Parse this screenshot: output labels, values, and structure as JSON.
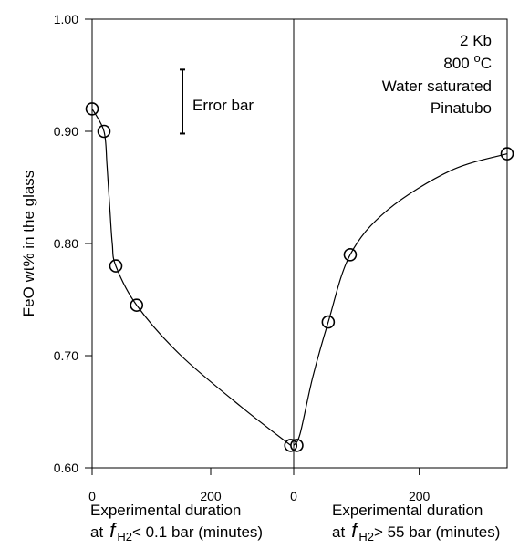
{
  "chart_data": {
    "type": "scatter",
    "ylabel": "FeO wt% in the glass",
    "ylim": [
      0.6,
      1.0
    ],
    "yticks": [
      "1.00",
      "0.90",
      "0.80",
      "0.70",
      "0.60"
    ],
    "yticks_values": [
      1.0,
      0.9,
      0.8,
      0.7,
      0.6
    ],
    "grid": false,
    "panels": [
      {
        "name": "left",
        "xlim": [
          0,
          340
        ],
        "xticks": [
          "0",
          "200"
        ],
        "xticks_values": [
          0,
          200
        ],
        "xlabel_line1": "Experimental duration",
        "xlabel_at": "at",
        "xlabel_f": "f",
        "xlabel_sub": "H2",
        "xlabel_rest": "< 0.1 bar (minutes)",
        "points": [
          {
            "x": 0,
            "y": 0.92
          },
          {
            "x": 20,
            "y": 0.9
          },
          {
            "x": 40,
            "y": 0.78
          },
          {
            "x": 75,
            "y": 0.745
          },
          {
            "x": 335,
            "y": 0.62
          }
        ],
        "curve": [
          {
            "x": 0,
            "y": 0.92
          },
          {
            "x": 20,
            "y": 0.9
          },
          {
            "x": 25,
            "y": 0.87
          },
          {
            "x": 30,
            "y": 0.83
          },
          {
            "x": 34,
            "y": 0.8
          },
          {
            "x": 40,
            "y": 0.78
          },
          {
            "x": 75,
            "y": 0.745
          },
          {
            "x": 150,
            "y": 0.7
          },
          {
            "x": 250,
            "y": 0.655
          },
          {
            "x": 335,
            "y": 0.62
          }
        ]
      },
      {
        "name": "right",
        "xlim": [
          0,
          340
        ],
        "xticks": [
          "0",
          "200"
        ],
        "xticks_values": [
          0,
          200
        ],
        "xlabel_line1": "Experimental duration",
        "xlabel_at": "at",
        "xlabel_f": "f",
        "xlabel_sub": "H2",
        "xlabel_rest": "> 55 bar (minutes)",
        "points": [
          {
            "x": 5,
            "y": 0.62
          },
          {
            "x": 55,
            "y": 0.73
          },
          {
            "x": 90,
            "y": 0.79
          },
          {
            "x": 340,
            "y": 0.88
          }
        ],
        "curve": [
          {
            "x": 0,
            "y": 0.62
          },
          {
            "x": 10,
            "y": 0.63
          },
          {
            "x": 30,
            "y": 0.68
          },
          {
            "x": 55,
            "y": 0.73
          },
          {
            "x": 90,
            "y": 0.79
          },
          {
            "x": 150,
            "y": 0.83
          },
          {
            "x": 250,
            "y": 0.865
          },
          {
            "x": 340,
            "y": 0.88
          }
        ]
      }
    ],
    "error_bar": {
      "label": "Error bar",
      "y_low": 0.898,
      "y_high": 0.955
    },
    "annotations": [
      "2 Kb",
      "800 ",
      "o",
      "C",
      "Water saturated",
      "Pinatubo"
    ]
  }
}
